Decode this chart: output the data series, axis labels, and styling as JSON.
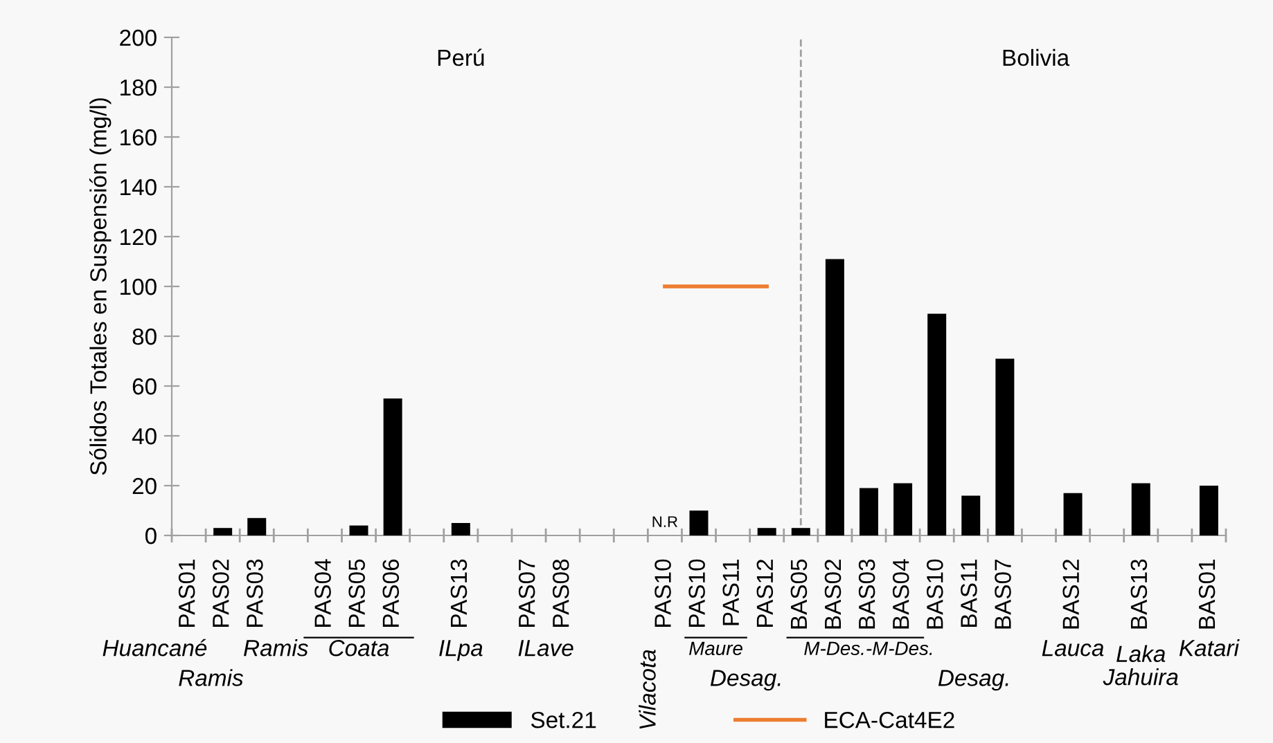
{
  "chart_data": {
    "type": "bar",
    "ylabel": "Sólidos Totales en Suspensión (mg/l)",
    "categories": [
      "PAS01",
      "PAS02",
      "PAS03",
      null,
      "PAS04",
      "PAS05",
      "PAS06",
      null,
      "PAS13",
      null,
      "PAS07",
      "PAS08",
      null,
      null,
      "PAS10",
      "PAS10",
      "PAS11",
      "PAS12",
      "BAS05",
      "BAS02",
      "BAS03",
      "BAS04",
      "BAS10",
      "BAS11",
      "BAS07",
      null,
      "BAS12",
      null,
      "BAS13",
      null,
      "BAS01"
    ],
    "series": [
      {
        "name": "Set.21",
        "color": "#000000",
        "values": [
          null,
          3,
          7,
          null,
          null,
          4,
          55,
          null,
          5,
          null,
          null,
          null,
          null,
          null,
          null,
          10,
          null,
          3,
          3,
          111,
          19,
          21,
          89,
          16,
          71,
          null,
          17,
          null,
          21,
          null,
          20
        ]
      },
      {
        "name": "ECA-Cat4E2",
        "type": "line",
        "color": "#ed7d31",
        "values": [
          null,
          null,
          null,
          null,
          null,
          null,
          null,
          null,
          null,
          null,
          null,
          null,
          null,
          null,
          100,
          100,
          100,
          100,
          null,
          null,
          null,
          null,
          null,
          null,
          null,
          null,
          null,
          null,
          null,
          null,
          null
        ]
      }
    ],
    "ylim": [
      0,
      200
    ],
    "yticks": [
      0,
      20,
      40,
      60,
      80,
      100,
      120,
      140,
      160,
      180,
      200
    ],
    "ref_lines": [
      {
        "axis": "x",
        "value": "BAS05",
        "line_style": "dashed",
        "color": "#a0a0a0"
      }
    ],
    "annotations": [
      "Perú",
      "Bolivia",
      "N.R",
      "Huancané",
      "Ramis",
      "Ramis",
      "Coata",
      "ILpa",
      "ILave",
      "Vilacota",
      "Maure",
      "Desag.",
      "M-Des.-M-Des.",
      "Desag.",
      "Lauca",
      "Laka\nJahuira",
      "Katari"
    ],
    "legend": "bottom",
    "grid": false
  }
}
